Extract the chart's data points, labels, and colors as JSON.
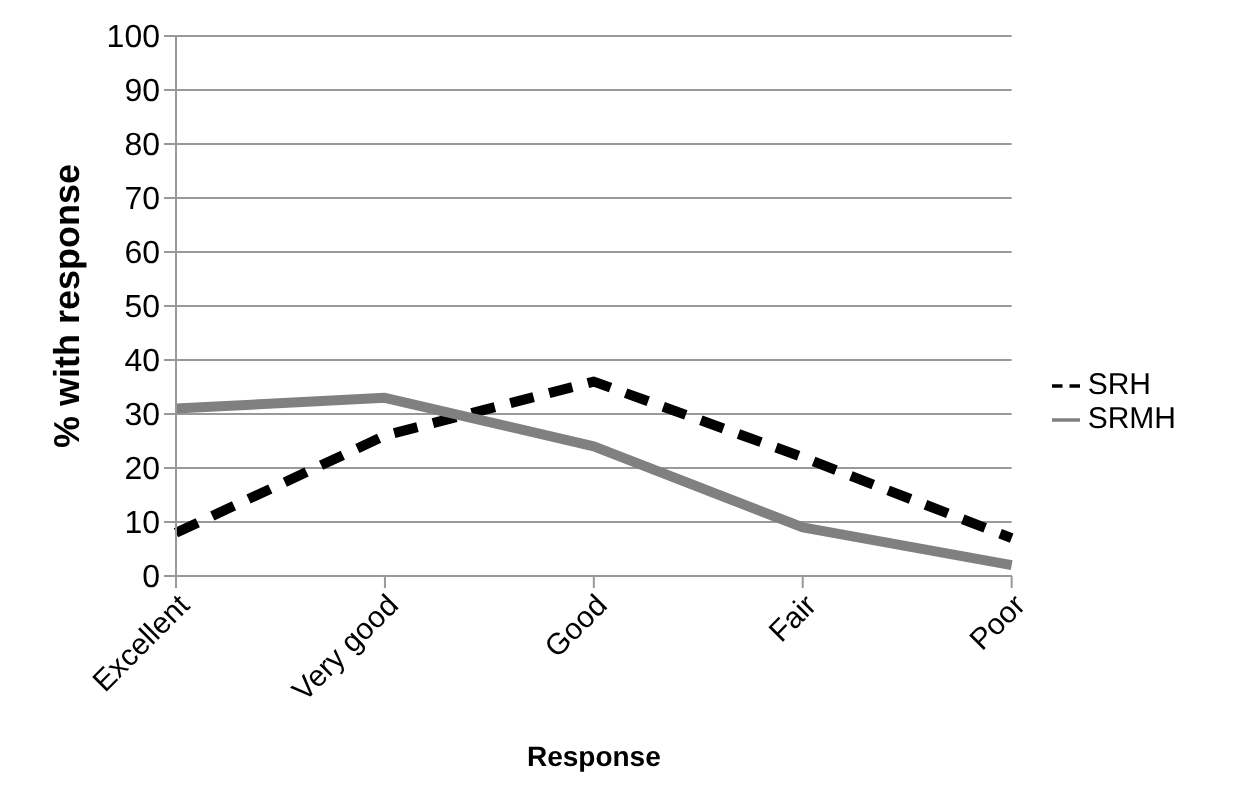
{
  "chart_data": {
    "type": "line",
    "xlabel": "Response",
    "ylabel": "% with response",
    "categories": [
      "Excellent",
      "Very good",
      "Good",
      "Fair",
      "Poor"
    ],
    "series": [
      {
        "name": "SRH",
        "color": "#000000",
        "line_style": "dashed",
        "values": [
          8,
          26,
          36,
          22,
          7
        ]
      },
      {
        "name": "SRMH",
        "color": "#808080",
        "line_style": "solid",
        "values": [
          31,
          33,
          24,
          9,
          2
        ]
      }
    ],
    "ylim": [
      0,
      100
    ],
    "yticks": [
      0,
      10,
      20,
      30,
      40,
      50,
      60,
      70,
      80,
      90,
      100
    ],
    "grid": "y",
    "legend": "right",
    "marker": "none"
  }
}
